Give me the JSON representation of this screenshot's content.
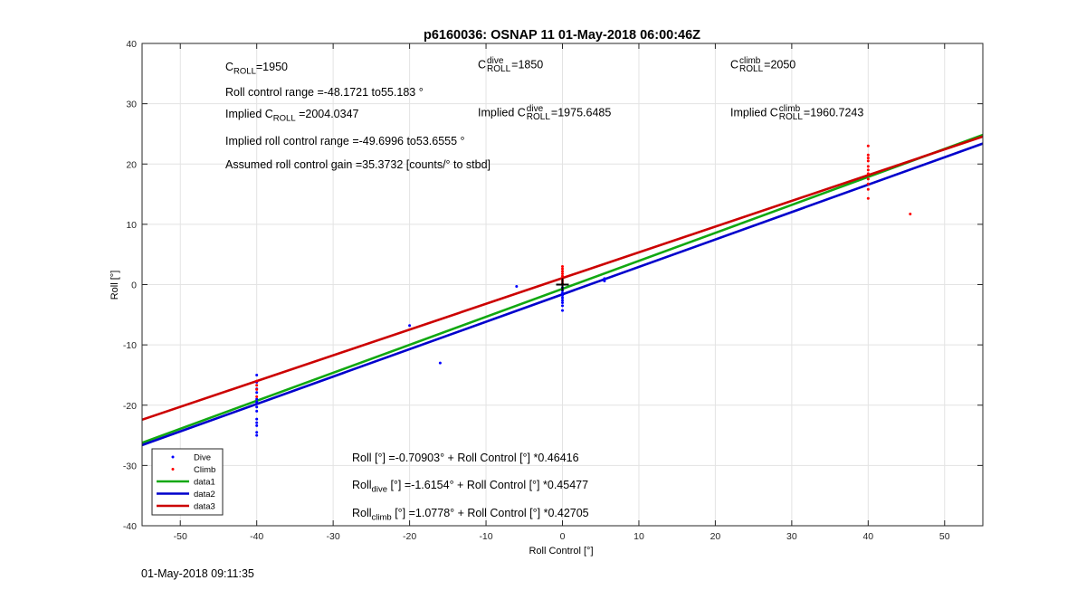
{
  "chart_data": {
    "type": "scatter",
    "title": "p6160036: OSNAP 11 01-May-2018 06:00:46Z",
    "xlabel": "Roll Control [°]",
    "ylabel": "Roll [°]",
    "xlim": [
      -55,
      55
    ],
    "ylim": [
      -40,
      40
    ],
    "xticks": [
      -50,
      -40,
      -30,
      -20,
      -10,
      0,
      10,
      20,
      30,
      40,
      50
    ],
    "yticks": [
      -40,
      -30,
      -20,
      -10,
      0,
      10,
      20,
      30,
      40
    ],
    "grid": true,
    "legend_position": "bottom-left",
    "series": [
      {
        "name": "Dive",
        "kind": "points",
        "color": "#0000ff",
        "points": [
          [
            -40,
            -15
          ],
          [
            -40,
            -16.2
          ],
          [
            -40,
            -17.3
          ],
          [
            -40,
            -17.9
          ],
          [
            -40,
            -19
          ],
          [
            -40,
            -19.5
          ],
          [
            -40,
            -20.3
          ],
          [
            -40,
            -21
          ],
          [
            -40,
            -22.3
          ],
          [
            -40,
            -22.9
          ],
          [
            -40,
            -23.4
          ],
          [
            -40,
            -24.5
          ],
          [
            -40,
            -25
          ],
          [
            -20,
            -6.8
          ],
          [
            -16,
            -13
          ],
          [
            -6,
            -0.3
          ],
          [
            0,
            -0.5
          ],
          [
            0,
            -1
          ],
          [
            0,
            -1.4
          ],
          [
            0,
            -1.8
          ],
          [
            0,
            -2.2
          ],
          [
            0,
            -2.6
          ],
          [
            0,
            -3
          ],
          [
            0,
            -3.5
          ],
          [
            0,
            -4.3
          ],
          [
            5.5,
            0.6
          ],
          [
            5.5,
            1
          ]
        ]
      },
      {
        "name": "Climb",
        "kind": "points",
        "color": "#ff0000",
        "points": [
          [
            -40,
            -16
          ],
          [
            -40,
            -16.7
          ],
          [
            -40,
            -17.4
          ],
          [
            -40,
            -18.6
          ],
          [
            0,
            3
          ],
          [
            0,
            2.6
          ],
          [
            0,
            2.2
          ],
          [
            0,
            1.8
          ],
          [
            0,
            1.4
          ],
          [
            0,
            1
          ],
          [
            0,
            0.6
          ],
          [
            0,
            0.2
          ],
          [
            40,
            23
          ],
          [
            40,
            21.5
          ],
          [
            40,
            21
          ],
          [
            40,
            20.5
          ],
          [
            40,
            19.6
          ],
          [
            40,
            19
          ],
          [
            40,
            18.4
          ],
          [
            40,
            17.5
          ],
          [
            40,
            16.7
          ],
          [
            40,
            15.8
          ],
          [
            40,
            14.3
          ],
          [
            45.5,
            11.7
          ]
        ]
      },
      {
        "name": "data1",
        "kind": "line",
        "color": "#11a811",
        "intercept": -0.70903,
        "slope": 0.46416
      },
      {
        "name": "data2",
        "kind": "line",
        "color": "#0000cc",
        "intercept": -1.6154,
        "slope": 0.45477
      },
      {
        "name": "data3",
        "kind": "line",
        "color": "#cc0000",
        "intercept": 1.0778,
        "slope": 0.42705
      }
    ],
    "marker_plus": [
      0,
      0
    ],
    "annotations": {
      "c_roll": {
        "symbol": "C",
        "sub": "ROLL",
        "value": "=1950"
      },
      "c_roll_dive": {
        "symbol": "C",
        "sup": "dive",
        "sub": "ROLL",
        "value": "=1850"
      },
      "c_roll_climb": {
        "symbol": "C",
        "sup": "climb",
        "sub": "ROLL",
        "value": "=2050"
      },
      "roll_control_range": "Roll control range =-48.1721 to55.183 °",
      "implied_c_roll": {
        "prefix": "Implied C",
        "sub": "ROLL",
        "value": " =2004.0347"
      },
      "implied_c_roll_dive": {
        "prefix": "Implied C",
        "sup": "dive",
        "sub": "ROLL",
        "value": "=1975.6485"
      },
      "implied_c_roll_climb": {
        "prefix": "Implied C",
        "sup": "climb",
        "sub": "ROLL",
        "value": "=1960.7243"
      },
      "implied_range": "Implied roll control range =-49.6996 to53.6555 °",
      "assumed_gain": "Assumed roll control gain =35.3732 [counts/° to stbd]",
      "fit_all": "Roll [°] =-0.70903° + Roll Control [°] *0.46416",
      "fit_dive": {
        "prefix": "Roll",
        "sub": "dive",
        "rest": " [°] =-1.6154° + Roll Control [°] *0.45477"
      },
      "fit_climb": {
        "prefix": "Roll",
        "sub": "climb",
        "rest": " [°] =1.0778° + Roll Control [°] *0.42705"
      }
    }
  },
  "footer_timestamp": "01-May-2018 09:11:35"
}
